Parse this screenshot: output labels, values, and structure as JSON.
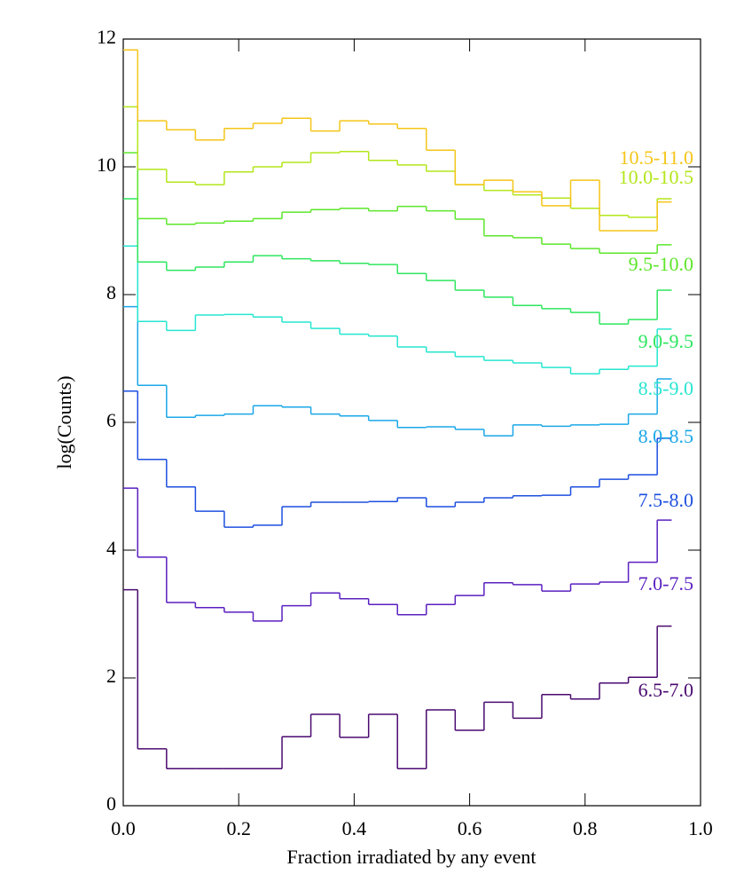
{
  "chart_data": {
    "type": "histogram",
    "xlabel": "Fraction irradiated by any event",
    "ylabel": "log(Counts)",
    "bins": [
      0,
      0.025,
      0.075,
      0.125,
      0.175,
      0.225,
      0.275,
      0.325,
      0.375,
      0.425,
      0.475,
      0.525,
      0.575,
      0.625,
      0.675,
      0.725,
      0.775,
      0.825,
      0.875,
      0.925,
      0.95
    ],
    "series": [
      {
        "name": "6.5-7.0",
        "color": "#4a0a70",
        "values": [
          3.38,
          0.89,
          0.58,
          0.58,
          0.58,
          0.58,
          1.08,
          1.43,
          1.07,
          1.43,
          0.58,
          1.5,
          1.18,
          1.62,
          1.37,
          1.74,
          1.67,
          1.92,
          2.01,
          2.81
        ]
      },
      {
        "name": "7.0-7.5",
        "color": "#5a1fc0",
        "values": [
          4.97,
          3.89,
          3.18,
          3.1,
          3.03,
          2.89,
          3.13,
          3.33,
          3.24,
          3.15,
          2.99,
          3.15,
          3.29,
          3.49,
          3.46,
          3.36,
          3.47,
          3.5,
          3.81,
          4.47
        ]
      },
      {
        "name": "7.5-8.0",
        "color": "#1d4fe0",
        "values": [
          6.49,
          5.42,
          4.99,
          4.61,
          4.36,
          4.39,
          4.68,
          4.75,
          4.75,
          4.76,
          4.82,
          4.68,
          4.75,
          4.82,
          4.85,
          4.86,
          4.99,
          5.11,
          5.18,
          5.75
        ]
      },
      {
        "name": "8.0-8.5",
        "color": "#1aa7e8",
        "values": [
          7.81,
          6.58,
          6.08,
          6.11,
          6.13,
          6.26,
          6.24,
          6.13,
          6.1,
          6.03,
          5.92,
          5.93,
          5.89,
          5.79,
          5.96,
          5.94,
          5.96,
          5.97,
          6.13,
          6.68
        ]
      },
      {
        "name": "8.5-9.0",
        "color": "#26e6d0",
        "values": [
          8.76,
          7.58,
          7.44,
          7.68,
          7.69,
          7.65,
          7.57,
          7.47,
          7.38,
          7.35,
          7.18,
          7.1,
          7.03,
          6.97,
          6.93,
          6.86,
          6.76,
          6.83,
          6.88,
          7.46
        ]
      },
      {
        "name": "9.0-9.5",
        "color": "#2ee65e",
        "values": [
          9.5,
          8.51,
          8.38,
          8.43,
          8.51,
          8.61,
          8.56,
          8.53,
          8.49,
          8.47,
          8.33,
          8.22,
          8.07,
          7.96,
          7.83,
          7.78,
          7.72,
          7.54,
          7.61,
          8.07
        ]
      },
      {
        "name": "9.5-10.0",
        "color": "#5ce62a",
        "values": [
          10.22,
          9.19,
          9.1,
          9.12,
          9.15,
          9.19,
          9.29,
          9.33,
          9.35,
          9.31,
          9.38,
          9.31,
          9.18,
          8.92,
          8.89,
          8.79,
          8.72,
          8.65,
          8.65,
          8.78
        ]
      },
      {
        "name": "10.0-10.5",
        "color": "#b3e61a",
        "values": [
          10.94,
          9.96,
          9.76,
          9.72,
          9.92,
          10.0,
          10.07,
          10.22,
          10.24,
          10.1,
          10.03,
          9.93,
          9.72,
          9.63,
          9.56,
          9.51,
          9.35,
          9.24,
          9.21,
          9.5
        ]
      },
      {
        "name": "10.5-11.0",
        "color": "#f5c518",
        "values": [
          11.83,
          10.72,
          10.58,
          10.42,
          10.6,
          10.68,
          10.76,
          10.56,
          10.72,
          10.67,
          10.6,
          10.26,
          9.72,
          9.79,
          9.61,
          9.39,
          9.79,
          9.0,
          9.0,
          9.45
        ]
      }
    ],
    "xlim": [
      0,
      1
    ],
    "ylim": [
      0,
      12
    ],
    "xticks": [
      {
        "value": 0,
        "label": "0.0"
      },
      0.2,
      0.4,
      0.6,
      0.8,
      {
        "value": 1,
        "label": "1.0"
      }
    ],
    "yticks": [
      0,
      2,
      4,
      6,
      8,
      10,
      12
    ]
  }
}
